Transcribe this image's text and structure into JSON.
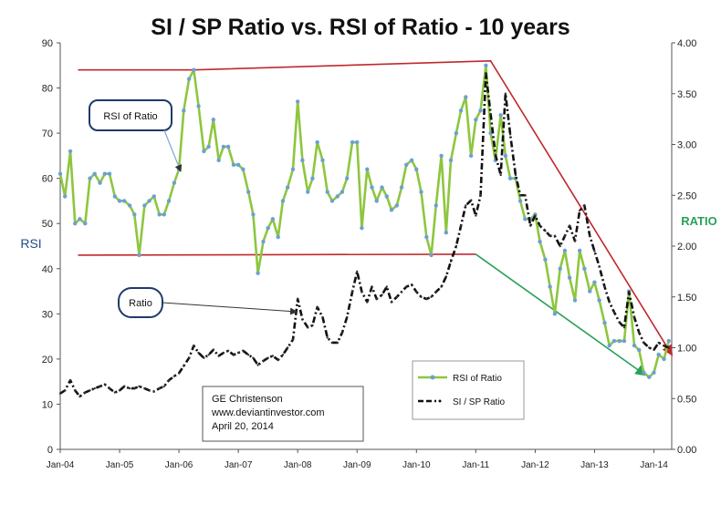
{
  "chart_data": {
    "type": "line",
    "title": "SI / SP Ratio vs. RSI of Ratio - 10 years",
    "ylabel_left": "RSI",
    "ylabel_right": "RATIO",
    "ylim_left": [
      0,
      90
    ],
    "ylim_right": [
      0,
      4
    ],
    "left_ticks": [
      0,
      10,
      20,
      30,
      40,
      50,
      60,
      70,
      80,
      90
    ],
    "right_ticks": [
      "0.00",
      "0.50",
      "1.00",
      "1.50",
      "2.00",
      "2.50",
      "3.00",
      "3.50",
      "4.00"
    ],
    "x_ticks": [
      {
        "label": "Jan-04",
        "t": 2004.0
      },
      {
        "label": "Jan-05",
        "t": 2005.0
      },
      {
        "label": "Jan-06",
        "t": 2006.0
      },
      {
        "label": "Jan-07",
        "t": 2007.0
      },
      {
        "label": "Jan-08",
        "t": 2008.0
      },
      {
        "label": "Jan-09",
        "t": 2009.0
      },
      {
        "label": "Jan-10",
        "t": 2010.0
      },
      {
        "label": "Jan-11",
        "t": 2011.0
      },
      {
        "label": "Jan-12",
        "t": 2012.0
      },
      {
        "label": "Jan-13",
        "t": 2013.0
      },
      {
        "label": "Jan-14",
        "t": 2014.0
      }
    ],
    "xlim": [
      2004.0,
      2014.3
    ],
    "series": [
      {
        "name": "RSI of Ratio",
        "axis": "left",
        "color": "#8dc63f",
        "marker_color": "#6d9fd6",
        "points": [
          [
            2004.0,
            61
          ],
          [
            2004.08,
            56
          ],
          [
            2004.17,
            66
          ],
          [
            2004.25,
            50
          ],
          [
            2004.33,
            51
          ],
          [
            2004.42,
            50
          ],
          [
            2004.5,
            60
          ],
          [
            2004.58,
            61
          ],
          [
            2004.67,
            59
          ],
          [
            2004.75,
            61
          ],
          [
            2004.83,
            61
          ],
          [
            2004.92,
            56
          ],
          [
            2005.0,
            55
          ],
          [
            2005.08,
            55
          ],
          [
            2005.17,
            54
          ],
          [
            2005.25,
            52
          ],
          [
            2005.33,
            43
          ],
          [
            2005.42,
            54
          ],
          [
            2005.5,
            55
          ],
          [
            2005.58,
            56
          ],
          [
            2005.67,
            52
          ],
          [
            2005.75,
            52
          ],
          [
            2005.83,
            55
          ],
          [
            2005.92,
            59
          ],
          [
            2006.0,
            62
          ],
          [
            2006.08,
            75
          ],
          [
            2006.17,
            82
          ],
          [
            2006.25,
            84
          ],
          [
            2006.33,
            76
          ],
          [
            2006.42,
            66
          ],
          [
            2006.5,
            67
          ],
          [
            2006.58,
            73
          ],
          [
            2006.67,
            64
          ],
          [
            2006.75,
            67
          ],
          [
            2006.83,
            67
          ],
          [
            2006.92,
            63
          ],
          [
            2007.0,
            63
          ],
          [
            2007.08,
            62
          ],
          [
            2007.17,
            57
          ],
          [
            2007.25,
            52
          ],
          [
            2007.33,
            39
          ],
          [
            2007.42,
            46
          ],
          [
            2007.5,
            49
          ],
          [
            2007.58,
            51
          ],
          [
            2007.67,
            47
          ],
          [
            2007.75,
            55
          ],
          [
            2007.83,
            58
          ],
          [
            2007.92,
            62
          ],
          [
            2008.0,
            77
          ],
          [
            2008.08,
            64
          ],
          [
            2008.17,
            57
          ],
          [
            2008.25,
            60
          ],
          [
            2008.33,
            68
          ],
          [
            2008.42,
            64
          ],
          [
            2008.5,
            57
          ],
          [
            2008.58,
            55
          ],
          [
            2008.67,
            56
          ],
          [
            2008.75,
            57
          ],
          [
            2008.83,
            60
          ],
          [
            2008.92,
            68
          ],
          [
            2009.0,
            68
          ],
          [
            2009.08,
            49
          ],
          [
            2009.17,
            62
          ],
          [
            2009.25,
            58
          ],
          [
            2009.33,
            55
          ],
          [
            2009.42,
            58
          ],
          [
            2009.5,
            56
          ],
          [
            2009.58,
            53
          ],
          [
            2009.67,
            54
          ],
          [
            2009.75,
            58
          ],
          [
            2009.83,
            63
          ],
          [
            2009.92,
            64
          ],
          [
            2010.0,
            62
          ],
          [
            2010.08,
            57
          ],
          [
            2010.17,
            47
          ],
          [
            2010.25,
            43
          ],
          [
            2010.33,
            54
          ],
          [
            2010.42,
            65
          ],
          [
            2010.5,
            48
          ],
          [
            2010.58,
            64
          ],
          [
            2010.67,
            70
          ],
          [
            2010.75,
            75
          ],
          [
            2010.83,
            78
          ],
          [
            2010.92,
            65
          ],
          [
            2011.0,
            73
          ],
          [
            2011.08,
            75
          ],
          [
            2011.17,
            85
          ],
          [
            2011.25,
            70
          ],
          [
            2011.33,
            64
          ],
          [
            2011.42,
            74
          ],
          [
            2011.5,
            65
          ],
          [
            2011.58,
            60
          ],
          [
            2011.67,
            60
          ],
          [
            2011.75,
            55
          ],
          [
            2011.83,
            51
          ],
          [
            2011.92,
            51
          ],
          [
            2012.0,
            52
          ],
          [
            2012.08,
            46
          ],
          [
            2012.17,
            42
          ],
          [
            2012.25,
            36
          ],
          [
            2012.33,
            30
          ],
          [
            2012.42,
            40
          ],
          [
            2012.5,
            44
          ],
          [
            2012.58,
            38
          ],
          [
            2012.67,
            33
          ],
          [
            2012.75,
            44
          ],
          [
            2012.83,
            40
          ],
          [
            2012.92,
            35
          ],
          [
            2013.0,
            37
          ],
          [
            2013.08,
            33
          ],
          [
            2013.17,
            28
          ],
          [
            2013.25,
            23
          ],
          [
            2013.33,
            24
          ],
          [
            2013.42,
            24
          ],
          [
            2013.5,
            24
          ],
          [
            2013.58,
            35
          ],
          [
            2013.67,
            23
          ],
          [
            2013.75,
            22
          ],
          [
            2013.83,
            17
          ],
          [
            2013.92,
            16
          ],
          [
            2014.0,
            17
          ],
          [
            2014.08,
            21
          ],
          [
            2014.17,
            20
          ],
          [
            2014.25,
            24
          ]
        ]
      },
      {
        "name": "SI / SP Ratio",
        "axis": "right",
        "color": "#111111",
        "points": [
          [
            2004.0,
            0.55
          ],
          [
            2004.08,
            0.58
          ],
          [
            2004.17,
            0.68
          ],
          [
            2004.25,
            0.58
          ],
          [
            2004.33,
            0.52
          ],
          [
            2004.42,
            0.56
          ],
          [
            2004.5,
            0.58
          ],
          [
            2004.58,
            0.6
          ],
          [
            2004.67,
            0.62
          ],
          [
            2004.75,
            0.64
          ],
          [
            2004.83,
            0.6
          ],
          [
            2004.92,
            0.56
          ],
          [
            2005.0,
            0.58
          ],
          [
            2005.08,
            0.62
          ],
          [
            2005.17,
            0.6
          ],
          [
            2005.25,
            0.6
          ],
          [
            2005.33,
            0.62
          ],
          [
            2005.42,
            0.6
          ],
          [
            2005.5,
            0.58
          ],
          [
            2005.58,
            0.57
          ],
          [
            2005.67,
            0.6
          ],
          [
            2005.75,
            0.62
          ],
          [
            2005.83,
            0.68
          ],
          [
            2005.92,
            0.72
          ],
          [
            2006.0,
            0.75
          ],
          [
            2006.08,
            0.82
          ],
          [
            2006.17,
            0.9
          ],
          [
            2006.25,
            1.02
          ],
          [
            2006.33,
            0.95
          ],
          [
            2006.42,
            0.9
          ],
          [
            2006.5,
            0.93
          ],
          [
            2006.58,
            0.98
          ],
          [
            2006.67,
            0.92
          ],
          [
            2006.75,
            0.95
          ],
          [
            2006.83,
            0.97
          ],
          [
            2006.92,
            0.93
          ],
          [
            2007.0,
            0.95
          ],
          [
            2007.08,
            0.97
          ],
          [
            2007.17,
            0.93
          ],
          [
            2007.25,
            0.9
          ],
          [
            2007.33,
            0.83
          ],
          [
            2007.42,
            0.87
          ],
          [
            2007.5,
            0.9
          ],
          [
            2007.58,
            0.92
          ],
          [
            2007.67,
            0.88
          ],
          [
            2007.75,
            0.93
          ],
          [
            2007.83,
            1.0
          ],
          [
            2007.92,
            1.08
          ],
          [
            2008.0,
            1.48
          ],
          [
            2008.08,
            1.28
          ],
          [
            2008.17,
            1.2
          ],
          [
            2008.25,
            1.22
          ],
          [
            2008.33,
            1.4
          ],
          [
            2008.42,
            1.3
          ],
          [
            2008.5,
            1.1
          ],
          [
            2008.58,
            1.05
          ],
          [
            2008.67,
            1.05
          ],
          [
            2008.75,
            1.15
          ],
          [
            2008.83,
            1.3
          ],
          [
            2008.92,
            1.55
          ],
          [
            2009.0,
            1.75
          ],
          [
            2009.08,
            1.55
          ],
          [
            2009.17,
            1.45
          ],
          [
            2009.25,
            1.6
          ],
          [
            2009.33,
            1.48
          ],
          [
            2009.42,
            1.52
          ],
          [
            2009.5,
            1.6
          ],
          [
            2009.58,
            1.45
          ],
          [
            2009.67,
            1.5
          ],
          [
            2009.75,
            1.55
          ],
          [
            2009.83,
            1.6
          ],
          [
            2009.92,
            1.62
          ],
          [
            2010.0,
            1.55
          ],
          [
            2010.08,
            1.5
          ],
          [
            2010.17,
            1.48
          ],
          [
            2010.25,
            1.5
          ],
          [
            2010.33,
            1.55
          ],
          [
            2010.42,
            1.6
          ],
          [
            2010.5,
            1.7
          ],
          [
            2010.58,
            1.85
          ],
          [
            2010.67,
            2.0
          ],
          [
            2010.75,
            2.2
          ],
          [
            2010.83,
            2.4
          ],
          [
            2010.92,
            2.45
          ],
          [
            2011.0,
            2.3
          ],
          [
            2011.08,
            2.5
          ],
          [
            2011.17,
            3.7
          ],
          [
            2011.25,
            3.3
          ],
          [
            2011.33,
            2.9
          ],
          [
            2011.42,
            2.7
          ],
          [
            2011.5,
            3.5
          ],
          [
            2011.58,
            3.1
          ],
          [
            2011.67,
            2.7
          ],
          [
            2011.75,
            2.5
          ],
          [
            2011.83,
            2.5
          ],
          [
            2011.92,
            2.2
          ],
          [
            2012.0,
            2.3
          ],
          [
            2012.08,
            2.2
          ],
          [
            2012.17,
            2.15
          ],
          [
            2012.25,
            2.1
          ],
          [
            2012.33,
            2.1
          ],
          [
            2012.42,
            2.0
          ],
          [
            2012.5,
            2.1
          ],
          [
            2012.58,
            2.2
          ],
          [
            2012.67,
            2.05
          ],
          [
            2012.75,
            2.35
          ],
          [
            2012.83,
            2.4
          ],
          [
            2012.92,
            2.1
          ],
          [
            2013.0,
            1.95
          ],
          [
            2013.08,
            1.8
          ],
          [
            2013.17,
            1.6
          ],
          [
            2013.25,
            1.45
          ],
          [
            2013.33,
            1.35
          ],
          [
            2013.42,
            1.25
          ],
          [
            2013.5,
            1.2
          ],
          [
            2013.58,
            1.55
          ],
          [
            2013.67,
            1.3
          ],
          [
            2013.75,
            1.15
          ],
          [
            2013.83,
            1.05
          ],
          [
            2013.92,
            1.0
          ],
          [
            2014.0,
            0.98
          ],
          [
            2014.08,
            1.05
          ],
          [
            2014.17,
            1.02
          ],
          [
            2014.25,
            1.0
          ]
        ]
      }
    ],
    "trendlines": [
      {
        "name": "rsi-upper-trendline",
        "color": "#c0282d",
        "axis": "left",
        "points": [
          [
            2004.3,
            84
          ],
          [
            2006.25,
            84
          ],
          [
            2011.25,
            86
          ],
          [
            2014.3,
            21
          ]
        ]
      },
      {
        "name": "rsi-lower-trendline",
        "color": "#c0282d",
        "axis": "left",
        "points": [
          [
            2004.3,
            43
          ],
          [
            2011.0,
            43.2
          ]
        ]
      },
      {
        "name": "ratio-support-trendline",
        "color": "#2aa05a",
        "axis": "left",
        "points": [
          [
            2011.0,
            43.2
          ],
          [
            2013.85,
            16.5
          ]
        ]
      }
    ],
    "legend": {
      "position": "bottom-right",
      "items": [
        {
          "label": "RSI of Ratio",
          "style": "green-line-blue-marker"
        },
        {
          "label": "SI / SP Ratio",
          "style": "black-dash-dot"
        }
      ]
    },
    "annotations": {
      "rsi_callout": "RSI of Ratio",
      "ratio_callout": "Ratio",
      "credit_lines": [
        "GE Christenson",
        "www.deviantinvestor.com",
        "April 20, 2014"
      ]
    }
  }
}
